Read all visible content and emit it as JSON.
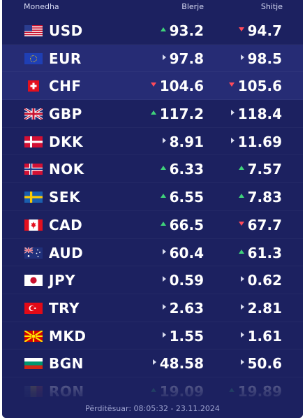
{
  "header": {
    "currency_label": "Monedha",
    "buy_label": "Blerje",
    "sell_label": "Shitje"
  },
  "rows": [
    {
      "code": "USD",
      "flag": "us-flag-icon",
      "buy": "93.2",
      "buy_trend": "up",
      "sell": "94.7",
      "sell_trend": "down"
    },
    {
      "code": "EUR",
      "flag": "eu-flag-icon",
      "buy": "97.8",
      "buy_trend": "flat",
      "sell": "98.5",
      "sell_trend": "flat"
    },
    {
      "code": "CHF",
      "flag": "ch-flag-icon",
      "buy": "104.6",
      "buy_trend": "down",
      "sell": "105.6",
      "sell_trend": "down"
    },
    {
      "code": "GBP",
      "flag": "gb-flag-icon",
      "buy": "117.2",
      "buy_trend": "up",
      "sell": "118.4",
      "sell_trend": "flat"
    },
    {
      "code": "DKK",
      "flag": "dk-flag-icon",
      "buy": "8.91",
      "buy_trend": "flat",
      "sell": "11.69",
      "sell_trend": "flat"
    },
    {
      "code": "NOK",
      "flag": "no-flag-icon",
      "buy": "6.33",
      "buy_trend": "up",
      "sell": "7.57",
      "sell_trend": "up"
    },
    {
      "code": "SEK",
      "flag": "se-flag-icon",
      "buy": "6.55",
      "buy_trend": "up",
      "sell": "7.83",
      "sell_trend": "up"
    },
    {
      "code": "CAD",
      "flag": "ca-flag-icon",
      "buy": "66.5",
      "buy_trend": "up",
      "sell": "67.7",
      "sell_trend": "down"
    },
    {
      "code": "AUD",
      "flag": "au-flag-icon",
      "buy": "60.4",
      "buy_trend": "flat",
      "sell": "61.3",
      "sell_trend": "up"
    },
    {
      "code": "JPY",
      "flag": "jp-flag-icon",
      "buy": "0.59",
      "buy_trend": "flat",
      "sell": "0.62",
      "sell_trend": "flat"
    },
    {
      "code": "TRY",
      "flag": "tr-flag-icon",
      "buy": "2.63",
      "buy_trend": "flat",
      "sell": "2.81",
      "sell_trend": "flat"
    },
    {
      "code": "MKD",
      "flag": "mk-flag-icon",
      "buy": "1.55",
      "buy_trend": "flat",
      "sell": "1.61",
      "sell_trend": "flat"
    },
    {
      "code": "BGN",
      "flag": "bg-flag-icon",
      "buy": "48.58",
      "buy_trend": "flat",
      "sell": "50.6",
      "sell_trend": "flat"
    },
    {
      "code": "RON",
      "flag": "ro-flag-icon",
      "buy": "19.09",
      "buy_trend": "up",
      "sell": "19.89",
      "sell_trend": "up"
    }
  ],
  "footer": {
    "updated_text": "Përditësuar: 08:05:32 - 23.11.2024"
  },
  "colors": {
    "panel_bg": "#1c2160",
    "highlight_bg": "#262c75",
    "up": "#3fd27a",
    "down": "#ff4a5a"
  }
}
